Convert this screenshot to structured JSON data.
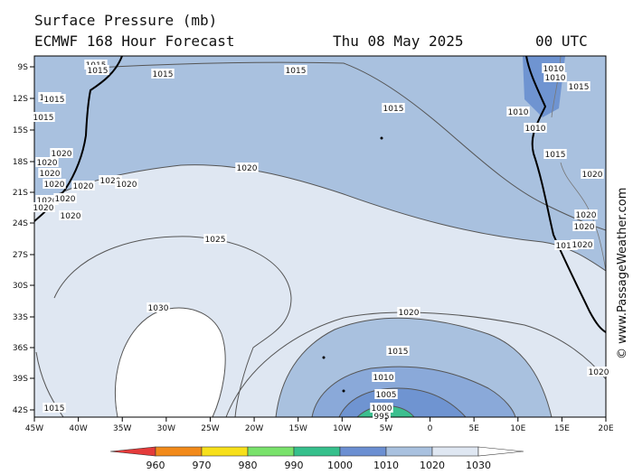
{
  "header": {
    "title_line1": "Surface Pressure (mb)",
    "title_line2": "ECMWF 168 Hour Forecast",
    "date": "Thu 08 May 2025",
    "time": "00 UTC"
  },
  "copyright": "© www.PassageWeather.com",
  "colors": {
    "band_1030": "#ffffff",
    "band_1020": "#dfe7f2",
    "band_1015": "#a9c1df",
    "band_1010": "#6f94d1",
    "band_1000": "#3cbf8f",
    "land": "#a9c1df",
    "coast": "#000000",
    "isobar": "#555555"
  },
  "axes": {
    "lat_labels": [
      "9S",
      "12S",
      "15S",
      "18S",
      "21S",
      "24S",
      "27S",
      "30S",
      "33S",
      "36S",
      "39S",
      "42S"
    ],
    "lon_labels": [
      "45W",
      "40W",
      "35W",
      "30W",
      "25W",
      "20W",
      "15W",
      "10W",
      "5W",
      "0",
      "5E",
      "10E",
      "15E",
      "20E"
    ]
  },
  "isobar_labels": [
    "1015",
    "1015",
    "1015",
    "1015",
    "1015",
    "1015",
    "1015",
    "1015",
    "1010",
    "1010",
    "1010",
    "1010",
    "1015",
    "1020",
    "1020",
    "1020",
    "1020",
    "1020",
    "1020",
    "1020",
    "1020",
    "1025",
    "1030",
    "1020",
    "1015",
    "1010",
    "1005",
    "1000",
    "995",
    "1010",
    "1020",
    "1020",
    "1020",
    "1020",
    "1015",
    "1020",
    "1020",
    "1020",
    "1020",
    "1020",
    "1015"
  ],
  "legend": {
    "values": [
      "960",
      "970",
      "980",
      "990",
      "1000",
      "1010",
      "1020",
      "1030"
    ],
    "colors": [
      "#e43b3b",
      "#f28a1a",
      "#f7e01a",
      "#79e26b",
      "#36c08c",
      "#6b8fd2",
      "#a9c1df",
      "#dfe7f2"
    ]
  }
}
